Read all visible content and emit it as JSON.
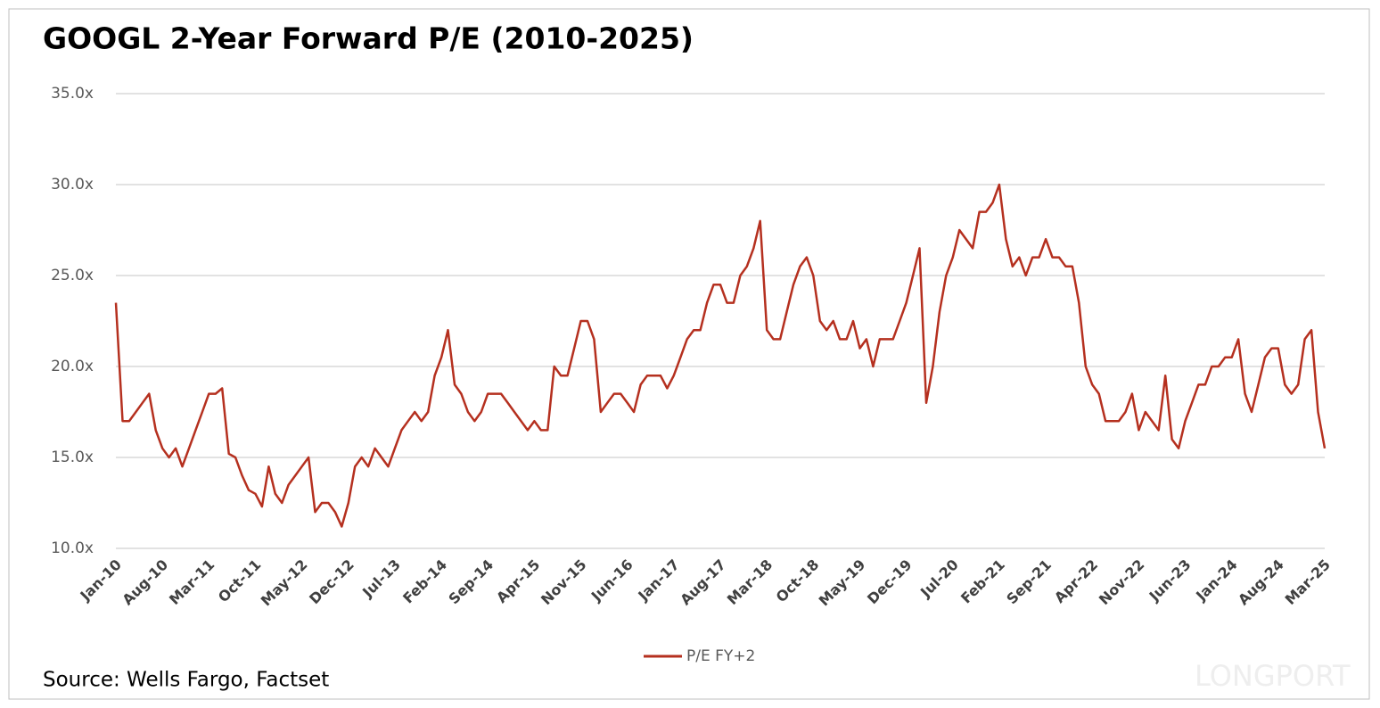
{
  "chart_data": {
    "type": "line",
    "title": "GOOGL 2-Year Forward P/E (2010-2025)",
    "source": "Source: Wells Fargo, Factset",
    "watermark": "LONGPORT",
    "categories": [
      "Jan-10",
      null,
      null,
      null,
      null,
      null,
      null,
      "Aug-10",
      null,
      null,
      null,
      null,
      null,
      null,
      "Mar-11",
      null,
      null,
      null,
      null,
      null,
      null,
      "Oct-11",
      null,
      null,
      null,
      null,
      null,
      null,
      "May-12",
      null,
      null,
      null,
      null,
      null,
      null,
      "Dec-12",
      null,
      null,
      null,
      null,
      null,
      null,
      "Jul-13",
      null,
      null,
      null,
      null,
      null,
      null,
      "Feb-14",
      null,
      null,
      null,
      null,
      null,
      null,
      "Sep-14",
      null,
      null,
      null,
      null,
      null,
      null,
      "Apr-15",
      null,
      null,
      null,
      null,
      null,
      null,
      "Nov-15",
      null,
      null,
      null,
      null,
      null,
      null,
      "Jun-16",
      null,
      null,
      null,
      null,
      null,
      null,
      "Jan-17",
      null,
      null,
      null,
      null,
      null,
      null,
      "Aug-17",
      null,
      null,
      null,
      null,
      null,
      null,
      "Mar-18",
      null,
      null,
      null,
      null,
      null,
      null,
      "Oct-18",
      null,
      null,
      null,
      null,
      null,
      null,
      "May-19",
      null,
      null,
      null,
      null,
      null,
      null,
      "Dec-19",
      null,
      null,
      null,
      null,
      null,
      null,
      "Jul-20",
      null,
      null,
      null,
      null,
      null,
      null,
      "Feb-21",
      null,
      null,
      null,
      null,
      null,
      null,
      "Sep-21",
      null,
      null,
      null,
      null,
      null,
      null,
      "Apr-22",
      null,
      null,
      null,
      null,
      null,
      null,
      "Nov-22",
      null,
      null,
      null,
      null,
      null,
      null,
      "Jun-23",
      null,
      null,
      null,
      null,
      null,
      null,
      "Jan-24",
      null,
      null,
      null,
      null,
      null,
      null,
      "Aug-24",
      null,
      null,
      null,
      null,
      null,
      null,
      "Mar-25"
    ],
    "series": [
      {
        "name": "P/E FY+2",
        "color": "#b5301f",
        "values": [
          23.5,
          17,
          17,
          17.5,
          18,
          18.5,
          16.5,
          15.5,
          15,
          15.5,
          14.5,
          15.5,
          16.5,
          17.5,
          18.5,
          18.5,
          18.8,
          15.2,
          15,
          14,
          13.2,
          13,
          12.3,
          14.5,
          13,
          12.5,
          13.5,
          14,
          14.5,
          15,
          12,
          12.5,
          12.5,
          12,
          11.2,
          12.5,
          14.5,
          15,
          14.5,
          15.5,
          15,
          14.5,
          15.5,
          16.5,
          17,
          17.5,
          17,
          17.5,
          19.5,
          20.5,
          22,
          19,
          18.5,
          17.5,
          17,
          17.5,
          18.5,
          18.5,
          18.5,
          18,
          17.5,
          17,
          16.5,
          17,
          16.5,
          16.5,
          20,
          19.5,
          19.5,
          21,
          22.5,
          22.5,
          21.5,
          17.5,
          18,
          18.5,
          18.5,
          18,
          17.5,
          19,
          19.5,
          19.5,
          19.5,
          18.8,
          19.5,
          20.5,
          21.5,
          22,
          22,
          23.5,
          24.5,
          24.5,
          23.5,
          23.5,
          25,
          25.5,
          26.5,
          28,
          22,
          21.5,
          21.5,
          23,
          24.5,
          25.5,
          26,
          25,
          22.5,
          22,
          22.5,
          21.5,
          21.5,
          22.5,
          21,
          21.5,
          20,
          21.5,
          21.5,
          21.5,
          22.5,
          23.5,
          25,
          26.5,
          18,
          20,
          23,
          25,
          26,
          27.5,
          27,
          26.5,
          28.5,
          28.5,
          29,
          30,
          27,
          25.5,
          26,
          25,
          26,
          26,
          27,
          26,
          26,
          25.5,
          25.5,
          23.5,
          20,
          19,
          18.5,
          17,
          17,
          17,
          17.5,
          18.5,
          16.5,
          17.5,
          17,
          16.5,
          19.5,
          16,
          15.5,
          17,
          18,
          19,
          19,
          20,
          20,
          20.5,
          20.5,
          21.5,
          18.5,
          17.5,
          19,
          20.5,
          21,
          21,
          19,
          18.5,
          19,
          21.5,
          22,
          17.5,
          15.5
        ]
      }
    ],
    "ylim": [
      10,
      35
    ],
    "yticks": [
      {
        "value": 10,
        "label": "10.0x"
      },
      {
        "value": 15,
        "label": "15.0x"
      },
      {
        "value": 20,
        "label": "20.0x"
      },
      {
        "value": 25,
        "label": "25.0x"
      },
      {
        "value": 30,
        "label": "30.0x"
      },
      {
        "value": 35,
        "label": "35.0x"
      }
    ],
    "grid": true,
    "legend": "bottom"
  }
}
